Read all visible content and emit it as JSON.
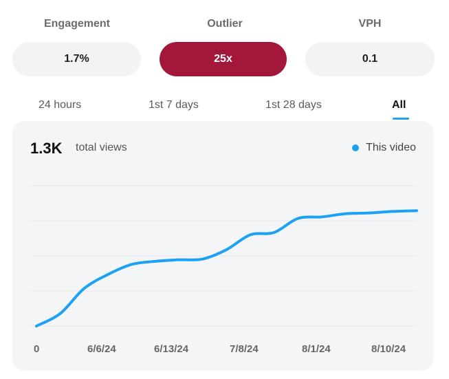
{
  "metrics": {
    "engagement": {
      "label": "Engagement",
      "value": "1.7%"
    },
    "outlier": {
      "label": "Outlier",
      "value": "25x"
    },
    "vph": {
      "label": "VPH",
      "value": "0.1"
    }
  },
  "tabs": [
    {
      "label": "24 hours",
      "active": false
    },
    {
      "label": "1st 7 days",
      "active": false
    },
    {
      "label": "1st 28 days",
      "active": false
    },
    {
      "label": "All",
      "active": true
    }
  ],
  "colors": {
    "accent": "#1da1f2",
    "outlier_bg": "#a3173b",
    "pill_bg": "#f2f3f5",
    "card_bg": "#f4f5f7"
  },
  "card": {
    "total_value": "1.3K",
    "total_label": "total views",
    "legend": "This video"
  },
  "chart_data": {
    "type": "line",
    "title": "",
    "xlabel": "",
    "ylabel": "",
    "x_tick_labels": [
      "0",
      "6/6/24",
      "6/13/24",
      "7/8/24",
      "8/1/24",
      "8/10/24"
    ],
    "grid": true,
    "legend_position": "top-right",
    "series": [
      {
        "name": "This video",
        "color": "#1da1f2",
        "values": [
          0,
          80,
          240,
          330,
          395,
          415,
          425,
          430,
          490,
          585,
          600,
          690,
          700,
          720,
          725,
          735,
          740
        ]
      }
    ],
    "ylim": [
      0,
      900
    ]
  }
}
